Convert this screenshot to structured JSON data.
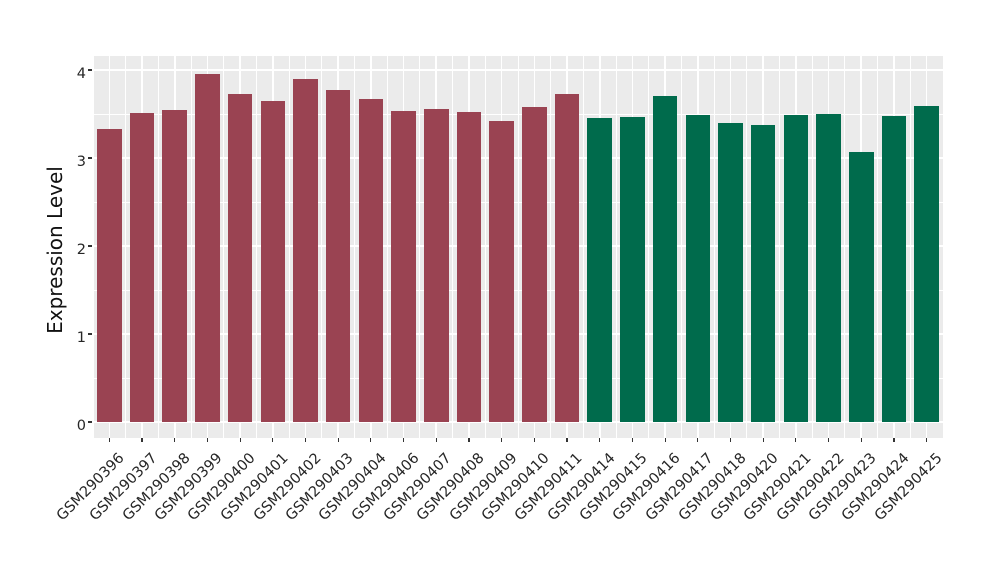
{
  "chart_data": {
    "type": "bar",
    "title": "",
    "xlabel": "",
    "ylabel": "Expression Level",
    "ylim": [
      -0.2,
      4.16
    ],
    "yticks": [
      0,
      1,
      2,
      3,
      4
    ],
    "grid": "ggplot gray panel, white major and minor gridlines",
    "legend_position": "none",
    "panel_bg": "#EBEBEB",
    "gridline_color": "#FFFFFF",
    "tick_color": "#333333",
    "group_colors": {
      "groupA": "#9A4352",
      "groupB": "#006B4C"
    },
    "categories": [
      "GSM290396",
      "GSM290397",
      "GSM290398",
      "GSM290399",
      "GSM290400",
      "GSM290401",
      "GSM290402",
      "GSM290403",
      "GSM290404",
      "GSM290406",
      "GSM290407",
      "GSM290408",
      "GSM290409",
      "GSM290410",
      "GSM290411",
      "GSM290414",
      "GSM290415",
      "GSM290416",
      "GSM290417",
      "GSM290418",
      "GSM290420",
      "GSM290421",
      "GSM290422",
      "GSM290423",
      "GSM290424",
      "GSM290425"
    ],
    "values": [
      3.33,
      3.51,
      3.54,
      3.95,
      3.73,
      3.65,
      3.9,
      3.77,
      3.67,
      3.53,
      3.56,
      3.52,
      3.42,
      3.58,
      3.73,
      3.45,
      3.47,
      3.7,
      3.49,
      3.4,
      3.38,
      3.49,
      3.5,
      3.07,
      3.48,
      3.59
    ],
    "groups": [
      "groupA",
      "groupA",
      "groupA",
      "groupA",
      "groupA",
      "groupA",
      "groupA",
      "groupA",
      "groupA",
      "groupA",
      "groupA",
      "groupA",
      "groupA",
      "groupA",
      "groupA",
      "groupB",
      "groupB",
      "groupB",
      "groupB",
      "groupB",
      "groupB",
      "groupB",
      "groupB",
      "groupB",
      "groupB",
      "groupB"
    ]
  }
}
